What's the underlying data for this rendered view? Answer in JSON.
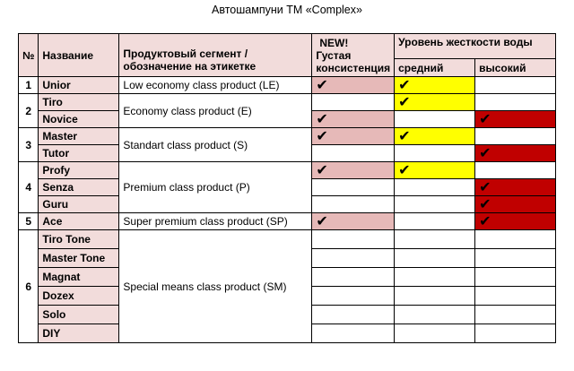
{
  "title": "Автошампуни ТМ «Complex»",
  "headers": {
    "num": "№",
    "name": "Название",
    "segment_line1": "Продуктовый сегмент /",
    "segment_line2": "обозначение на этикетке",
    "new_line1": "NEW!",
    "new_line2": "Густая",
    "new_line3": "консистенция",
    "hardness": "Уровень жесткости воды",
    "medium": "средний",
    "high": "высокий"
  },
  "check_symbol": "✔",
  "colors": {
    "header_bg": "#f2dcdb",
    "new_fill": "#e6b9b8",
    "medium_fill": "#ffff00",
    "high_fill": "#c00000"
  },
  "groups": [
    {
      "num": "1",
      "segment": "Low economy class product (LE)"
    },
    {
      "num": "2",
      "segment": "Economy class product (E)"
    },
    {
      "num": "3",
      "segment": "Standart class product (S)"
    },
    {
      "num": "4",
      "segment": "Premium class product (P)"
    },
    {
      "num": "5",
      "segment": "Super premium class product (SP)"
    },
    {
      "num": "6",
      "segment": "Special means class product (SM)"
    }
  ],
  "products": [
    {
      "name": "Unior",
      "new": true,
      "medium": true,
      "high": false
    },
    {
      "name": "Tiro",
      "new": false,
      "medium": true,
      "high": false
    },
    {
      "name": "Novice",
      "new": true,
      "medium": false,
      "high": true
    },
    {
      "name": "Master",
      "new": true,
      "medium": true,
      "high": false
    },
    {
      "name": "Tutor",
      "new": false,
      "medium": false,
      "high": true
    },
    {
      "name": "Profy",
      "new": true,
      "medium": true,
      "high": false
    },
    {
      "name": "Senza",
      "new": false,
      "medium": false,
      "high": true
    },
    {
      "name": "Guru",
      "new": false,
      "medium": false,
      "high": true
    },
    {
      "name": "Ace",
      "new": true,
      "medium": false,
      "high": true
    },
    {
      "name": "Tiro Tone",
      "new": false,
      "medium": false,
      "high": false
    },
    {
      "name": "Master Tone",
      "new": false,
      "medium": false,
      "high": false
    },
    {
      "name": "Magnat",
      "new": false,
      "medium": false,
      "high": false
    },
    {
      "name": "Dozex",
      "new": false,
      "medium": false,
      "high": false
    },
    {
      "name": "Solo",
      "new": false,
      "medium": false,
      "high": false
    },
    {
      "name": "DIY",
      "new": false,
      "medium": false,
      "high": false
    }
  ]
}
